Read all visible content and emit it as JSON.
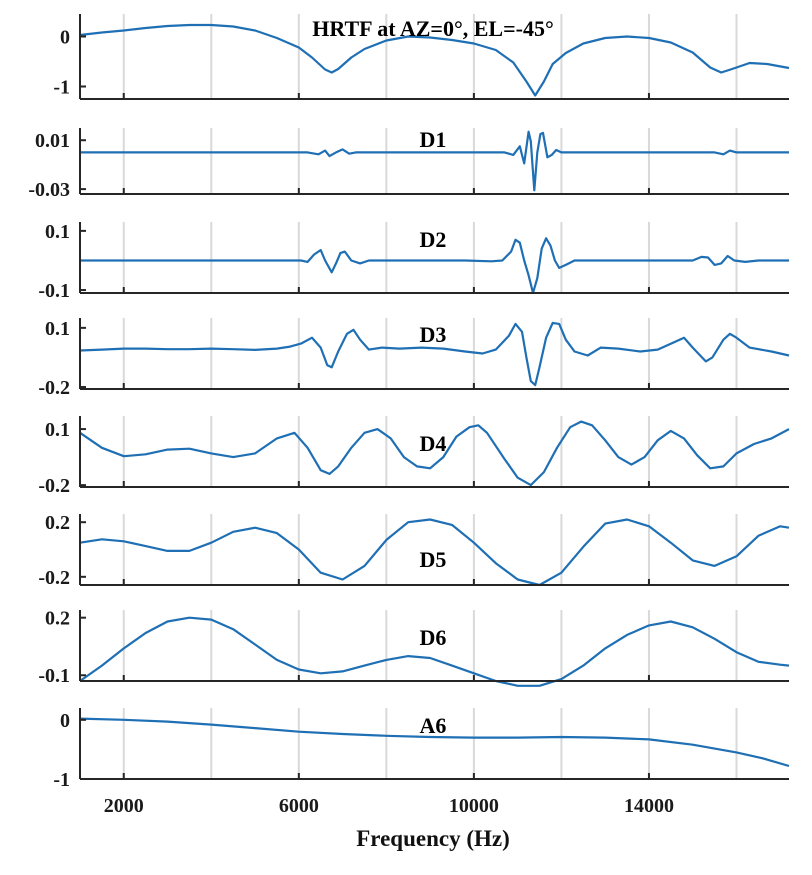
{
  "figure": {
    "xlabel": "Frequency (Hz)",
    "xlim": [
      1000,
      17200
    ],
    "xticks": [
      2000,
      6000,
      10000,
      14000
    ],
    "xtick_labels": [
      "2000",
      "6000",
      "10000",
      "14000"
    ],
    "minor_grid_xticks": [
      2000,
      4000,
      6000,
      8000,
      10000,
      12000,
      14000,
      16000
    ],
    "line_color": "#1f6fb4"
  },
  "chart_data": [
    {
      "type": "line",
      "title": "HRTF at AZ=0°, EL=-45°",
      "ylim": [
        -1.25,
        0.45
      ],
      "yticks": [
        0,
        -1
      ],
      "ytick_labels": [
        "0",
        "-1"
      ],
      "points": [
        [
          1000,
          0.03
        ],
        [
          1500,
          0.08
        ],
        [
          2000,
          0.12
        ],
        [
          2500,
          0.17
        ],
        [
          3000,
          0.21
        ],
        [
          3500,
          0.23
        ],
        [
          4000,
          0.23
        ],
        [
          4500,
          0.2
        ],
        [
          5000,
          0.12
        ],
        [
          5500,
          -0.03
        ],
        [
          6000,
          -0.22
        ],
        [
          6300,
          -0.42
        ],
        [
          6600,
          -0.66
        ],
        [
          6750,
          -0.72
        ],
        [
          6900,
          -0.65
        ],
        [
          7200,
          -0.42
        ],
        [
          7500,
          -0.25
        ],
        [
          8000,
          -0.08
        ],
        [
          8500,
          0.0
        ],
        [
          9000,
          -0.02
        ],
        [
          9500,
          -0.07
        ],
        [
          10000,
          -0.14
        ],
        [
          10500,
          -0.27
        ],
        [
          10900,
          -0.52
        ],
        [
          11200,
          -0.9
        ],
        [
          11400,
          -1.18
        ],
        [
          11600,
          -0.9
        ],
        [
          11800,
          -0.55
        ],
        [
          12100,
          -0.33
        ],
        [
          12500,
          -0.14
        ],
        [
          13000,
          -0.03
        ],
        [
          13500,
          0.0
        ],
        [
          14000,
          -0.03
        ],
        [
          14500,
          -0.12
        ],
        [
          15000,
          -0.32
        ],
        [
          15400,
          -0.62
        ],
        [
          15650,
          -0.72
        ],
        [
          15900,
          -0.65
        ],
        [
          16300,
          -0.53
        ],
        [
          16700,
          -0.55
        ],
        [
          17200,
          -0.63
        ]
      ]
    },
    {
      "type": "line",
      "title": "D1",
      "ylim": [
        -0.034,
        0.02
      ],
      "yticks": [
        0.01,
        -0.03
      ],
      "ytick_labels": [
        "0.01",
        "-0.03"
      ],
      "points": [
        [
          1000,
          0.0
        ],
        [
          5700,
          0.0
        ],
        [
          6200,
          0.0
        ],
        [
          6450,
          -0.0015
        ],
        [
          6600,
          0.0015
        ],
        [
          6700,
          -0.003
        ],
        [
          6850,
          0.0
        ],
        [
          7000,
          0.0025
        ],
        [
          7150,
          -0.001
        ],
        [
          7300,
          0.0
        ],
        [
          9500,
          0.0
        ],
        [
          10700,
          0.0
        ],
        [
          10900,
          -0.002
        ],
        [
          11050,
          0.005
        ],
        [
          11150,
          -0.009
        ],
        [
          11250,
          0.017
        ],
        [
          11300,
          0.009
        ],
        [
          11380,
          -0.031
        ],
        [
          11450,
          0.0
        ],
        [
          11520,
          0.015
        ],
        [
          11580,
          0.016
        ],
        [
          11680,
          -0.004
        ],
        [
          11780,
          -0.002
        ],
        [
          11880,
          0.002
        ],
        [
          12000,
          0.0
        ],
        [
          15500,
          0.0
        ],
        [
          15700,
          -0.0015
        ],
        [
          15850,
          0.0015
        ],
        [
          16000,
          0.0
        ],
        [
          17200,
          0.0
        ]
      ]
    },
    {
      "type": "line",
      "title": "D2",
      "ylim": [
        -0.11,
        0.13
      ],
      "yticks": [
        0.1,
        -0.1
      ],
      "ytick_labels": [
        "0.1",
        "-0.1"
      ],
      "points": [
        [
          1000,
          0.0
        ],
        [
          5800,
          0.0
        ],
        [
          6050,
          0.0
        ],
        [
          6200,
          -0.005
        ],
        [
          6350,
          0.02
        ],
        [
          6500,
          0.035
        ],
        [
          6600,
          0.0
        ],
        [
          6750,
          -0.04
        ],
        [
          6850,
          -0.01
        ],
        [
          6950,
          0.025
        ],
        [
          7050,
          0.03
        ],
        [
          7200,
          0.0
        ],
        [
          7400,
          -0.01
        ],
        [
          7600,
          0.0
        ],
        [
          9800,
          0.0
        ],
        [
          10400,
          -0.003
        ],
        [
          10650,
          0.0
        ],
        [
          10850,
          0.03
        ],
        [
          10950,
          0.07
        ],
        [
          11050,
          0.06
        ],
        [
          11150,
          0.0
        ],
        [
          11250,
          -0.05
        ],
        [
          11350,
          -0.11
        ],
        [
          11450,
          -0.06
        ],
        [
          11550,
          0.04
        ],
        [
          11650,
          0.075
        ],
        [
          11750,
          0.05
        ],
        [
          11850,
          0.0
        ],
        [
          11950,
          -0.025
        ],
        [
          12100,
          -0.015
        ],
        [
          12300,
          0.0
        ],
        [
          15000,
          0.0
        ],
        [
          15200,
          0.012
        ],
        [
          15350,
          0.01
        ],
        [
          15500,
          -0.015
        ],
        [
          15650,
          -0.01
        ],
        [
          15800,
          0.015
        ],
        [
          15950,
          0.0
        ],
        [
          16200,
          -0.005
        ],
        [
          16500,
          0.0
        ],
        [
          17200,
          0.0
        ]
      ]
    },
    {
      "type": "line",
      "title": "D3",
      "ylim": [
        -0.21,
        0.15
      ],
      "yticks": [
        0.1,
        -0.2
      ],
      "ytick_labels": [
        "0.1",
        "-0.2"
      ],
      "points": [
        [
          1000,
          -0.015
        ],
        [
          1500,
          -0.01
        ],
        [
          2000,
          -0.005
        ],
        [
          2500,
          -0.005
        ],
        [
          3000,
          -0.008
        ],
        [
          3500,
          -0.008
        ],
        [
          4000,
          -0.005
        ],
        [
          4500,
          -0.008
        ],
        [
          5000,
          -0.012
        ],
        [
          5500,
          -0.005
        ],
        [
          5800,
          0.005
        ],
        [
          6050,
          0.02
        ],
        [
          6300,
          0.05
        ],
        [
          6500,
          0.0
        ],
        [
          6650,
          -0.09
        ],
        [
          6750,
          -0.1
        ],
        [
          6900,
          -0.02
        ],
        [
          7100,
          0.07
        ],
        [
          7250,
          0.09
        ],
        [
          7400,
          0.04
        ],
        [
          7600,
          -0.01
        ],
        [
          7900,
          0.0
        ],
        [
          8300,
          -0.005
        ],
        [
          8800,
          0.0
        ],
        [
          9300,
          -0.005
        ],
        [
          9800,
          -0.02
        ],
        [
          10200,
          -0.03
        ],
        [
          10500,
          -0.01
        ],
        [
          10800,
          0.06
        ],
        [
          10950,
          0.12
        ],
        [
          11100,
          0.08
        ],
        [
          11200,
          -0.05
        ],
        [
          11300,
          -0.17
        ],
        [
          11400,
          -0.19
        ],
        [
          11500,
          -0.1
        ],
        [
          11650,
          0.05
        ],
        [
          11800,
          0.125
        ],
        [
          11950,
          0.12
        ],
        [
          12100,
          0.04
        ],
        [
          12300,
          -0.02
        ],
        [
          12600,
          -0.04
        ],
        [
          12900,
          0.0
        ],
        [
          13300,
          -0.005
        ],
        [
          13800,
          -0.02
        ],
        [
          14200,
          -0.01
        ],
        [
          14600,
          0.03
        ],
        [
          14800,
          0.05
        ],
        [
          15000,
          0.0
        ],
        [
          15300,
          -0.07
        ],
        [
          15450,
          -0.05
        ],
        [
          15700,
          0.04
        ],
        [
          15850,
          0.07
        ],
        [
          16000,
          0.05
        ],
        [
          16300,
          0.0
        ],
        [
          16800,
          -0.02
        ],
        [
          17200,
          -0.04
        ]
      ]
    },
    {
      "type": "line",
      "title": "D4",
      "ylim": [
        -0.21,
        0.17
      ],
      "yticks": [
        0.1,
        -0.2
      ],
      "ytick_labels": [
        "0.1",
        "-0.2"
      ],
      "points": [
        [
          1000,
          0.08
        ],
        [
          1500,
          0.0
        ],
        [
          2000,
          -0.045
        ],
        [
          2500,
          -0.035
        ],
        [
          3000,
          -0.01
        ],
        [
          3500,
          -0.005
        ],
        [
          4000,
          -0.03
        ],
        [
          4500,
          -0.05
        ],
        [
          5000,
          -0.03
        ],
        [
          5500,
          0.05
        ],
        [
          5900,
          0.08
        ],
        [
          6200,
          0.0
        ],
        [
          6500,
          -0.12
        ],
        [
          6700,
          -0.14
        ],
        [
          6900,
          -0.1
        ],
        [
          7200,
          0.0
        ],
        [
          7500,
          0.08
        ],
        [
          7800,
          0.1
        ],
        [
          8100,
          0.05
        ],
        [
          8400,
          -0.05
        ],
        [
          8700,
          -0.1
        ],
        [
          9000,
          -0.11
        ],
        [
          9300,
          -0.05
        ],
        [
          9600,
          0.06
        ],
        [
          9900,
          0.11
        ],
        [
          10100,
          0.12
        ],
        [
          10300,
          0.08
        ],
        [
          10700,
          -0.06
        ],
        [
          11000,
          -0.16
        ],
        [
          11300,
          -0.2
        ],
        [
          11600,
          -0.13
        ],
        [
          11900,
          0.0
        ],
        [
          12200,
          0.11
        ],
        [
          12450,
          0.14
        ],
        [
          12700,
          0.12
        ],
        [
          13000,
          0.04
        ],
        [
          13300,
          -0.05
        ],
        [
          13600,
          -0.09
        ],
        [
          13900,
          -0.05
        ],
        [
          14200,
          0.04
        ],
        [
          14500,
          0.09
        ],
        [
          14800,
          0.05
        ],
        [
          15100,
          -0.04
        ],
        [
          15400,
          -0.11
        ],
        [
          15700,
          -0.1
        ],
        [
          16000,
          -0.03
        ],
        [
          16400,
          0.02
        ],
        [
          16800,
          0.05
        ],
        [
          17200,
          0.1
        ]
      ]
    },
    {
      "type": "line",
      "title": "D5",
      "ylim": [
        -0.26,
        0.26
      ],
      "yticks": [
        0.2,
        -0.2
      ],
      "ytick_labels": [
        "0.2",
        "-0.2"
      ],
      "points": [
        [
          1000,
          0.05
        ],
        [
          1500,
          0.075
        ],
        [
          2000,
          0.06
        ],
        [
          2500,
          0.025
        ],
        [
          3000,
          -0.01
        ],
        [
          3500,
          -0.01
        ],
        [
          4000,
          0.05
        ],
        [
          4500,
          0.13
        ],
        [
          5000,
          0.16
        ],
        [
          5500,
          0.12
        ],
        [
          6000,
          0.0
        ],
        [
          6500,
          -0.17
        ],
        [
          7000,
          -0.22
        ],
        [
          7500,
          -0.12
        ],
        [
          8000,
          0.07
        ],
        [
          8500,
          0.2
        ],
        [
          9000,
          0.22
        ],
        [
          9500,
          0.18
        ],
        [
          10000,
          0.05
        ],
        [
          10500,
          -0.1
        ],
        [
          11000,
          -0.22
        ],
        [
          11500,
          -0.26
        ],
        [
          12000,
          -0.17
        ],
        [
          12500,
          0.02
        ],
        [
          13000,
          0.19
        ],
        [
          13500,
          0.22
        ],
        [
          14000,
          0.17
        ],
        [
          14500,
          0.05
        ],
        [
          15000,
          -0.08
        ],
        [
          15500,
          -0.12
        ],
        [
          16000,
          -0.05
        ],
        [
          16500,
          0.1
        ],
        [
          17000,
          0.17
        ],
        [
          17200,
          0.16
        ]
      ]
    },
    {
      "type": "line",
      "title": "D6",
      "ylim": [
        -0.13,
        0.24
      ],
      "yticks": [
        0.2,
        -0.1
      ],
      "ytick_labels": [
        "0.2",
        "-0.1"
      ],
      "points": [
        [
          1000,
          -0.13
        ],
        [
          1500,
          -0.05
        ],
        [
          2000,
          0.04
        ],
        [
          2500,
          0.12
        ],
        [
          3000,
          0.18
        ],
        [
          3500,
          0.2
        ],
        [
          4000,
          0.19
        ],
        [
          4500,
          0.14
        ],
        [
          5000,
          0.06
        ],
        [
          5500,
          -0.02
        ],
        [
          6000,
          -0.07
        ],
        [
          6500,
          -0.09
        ],
        [
          7000,
          -0.08
        ],
        [
          7500,
          -0.05
        ],
        [
          8000,
          -0.02
        ],
        [
          8500,
          0.0
        ],
        [
          9000,
          -0.01
        ],
        [
          9500,
          -0.05
        ],
        [
          10000,
          -0.09
        ],
        [
          10500,
          -0.13
        ],
        [
          11000,
          -0.155
        ],
        [
          11500,
          -0.155
        ],
        [
          12000,
          -0.12
        ],
        [
          12500,
          -0.05
        ],
        [
          13000,
          0.04
        ],
        [
          13500,
          0.11
        ],
        [
          14000,
          0.16
        ],
        [
          14500,
          0.18
        ],
        [
          15000,
          0.15
        ],
        [
          15500,
          0.09
        ],
        [
          16000,
          0.02
        ],
        [
          16500,
          -0.03
        ],
        [
          17000,
          -0.045
        ],
        [
          17200,
          -0.05
        ]
      ]
    },
    {
      "type": "line",
      "title": "A6",
      "ylim": [
        -1.0,
        0.2
      ],
      "yticks": [
        0,
        -1
      ],
      "ytick_labels": [
        "0",
        "-1"
      ],
      "points": [
        [
          1000,
          0.02
        ],
        [
          2000,
          0.0
        ],
        [
          3000,
          -0.03
        ],
        [
          4000,
          -0.08
        ],
        [
          5000,
          -0.14
        ],
        [
          6000,
          -0.2
        ],
        [
          7000,
          -0.24
        ],
        [
          8000,
          -0.27
        ],
        [
          9000,
          -0.29
        ],
        [
          10000,
          -0.3
        ],
        [
          11000,
          -0.3
        ],
        [
          12000,
          -0.29
        ],
        [
          13000,
          -0.3
        ],
        [
          14000,
          -0.33
        ],
        [
          15000,
          -0.42
        ],
        [
          16000,
          -0.55
        ],
        [
          16600,
          -0.65
        ],
        [
          17200,
          -0.78
        ]
      ]
    }
  ]
}
